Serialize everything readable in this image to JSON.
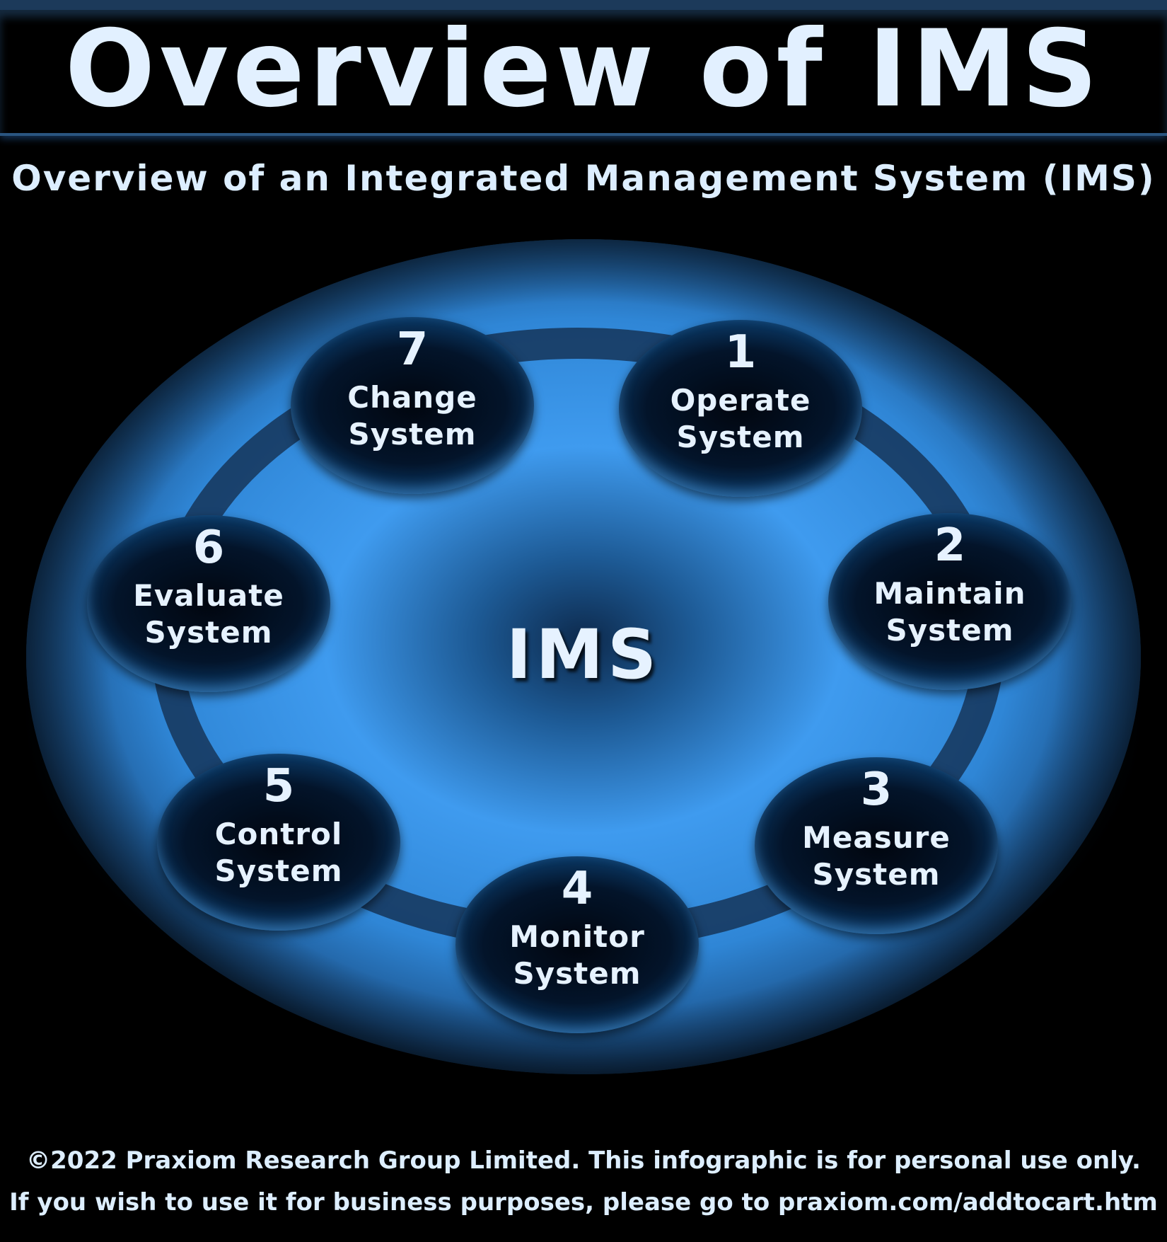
{
  "header": {
    "title": "Overview of IMS",
    "subtitle": "Overview of an Integrated Management System (IMS)"
  },
  "diagram": {
    "center_label": "IMS",
    "steps": [
      {
        "number": "1",
        "line1": "Operate",
        "line2": "System"
      },
      {
        "number": "2",
        "line1": "Maintain",
        "line2": "System"
      },
      {
        "number": "3",
        "line1": "Measure",
        "line2": "System"
      },
      {
        "number": "4",
        "line1": "Monitor",
        "line2": "System"
      },
      {
        "number": "5",
        "line1": "Control",
        "line2": "System"
      },
      {
        "number": "6",
        "line1": "Evaluate",
        "line2": "System"
      },
      {
        "number": "7",
        "line1": "Change",
        "line2": "System"
      }
    ]
  },
  "footer": {
    "line1": "©2022 Praxiom Research Group Limited. This infographic is for personal use only.",
    "line2": "If you wish to use it for business purposes, please go to praxiom.com/addtocart.htm"
  },
  "colors": {
    "background": "#000000",
    "text": "#e2f0ff",
    "accent_blue": "#43a2f4",
    "ring": "#173a60"
  }
}
